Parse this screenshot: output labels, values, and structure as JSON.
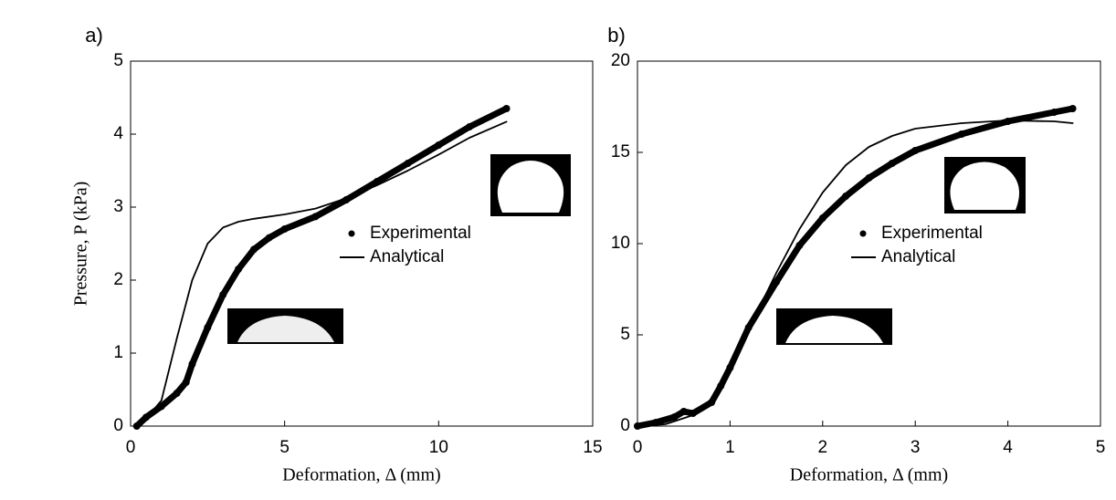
{
  "chart_data": [
    {
      "type": "line",
      "panel_label": "a)",
      "xlabel": "Deformation, Δ (mm)",
      "ylabel": "Pressure, P (kPa)",
      "xlim": [
        0,
        15
      ],
      "xticks": [
        0,
        5,
        10,
        15
      ],
      "ylim": [
        0,
        5
      ],
      "yticks": [
        0,
        1,
        2,
        3,
        4,
        5
      ],
      "series": [
        {
          "name": "Experimental",
          "color": "#000000",
          "style": "dots",
          "x": [
            0.2,
            0.5,
            1,
            1.5,
            1.8,
            2,
            2.5,
            3,
            3.5,
            4,
            4.5,
            5,
            6,
            7,
            8,
            9,
            10,
            11,
            12.2
          ],
          "values": [
            0,
            0.12,
            0.27,
            0.45,
            0.6,
            0.85,
            1.35,
            1.8,
            2.15,
            2.42,
            2.58,
            2.7,
            2.87,
            3.1,
            3.35,
            3.6,
            3.85,
            4.1,
            4.35
          ]
        },
        {
          "name": "Analytical",
          "color": "#000000",
          "style": "line",
          "x": [
            0.2,
            0.5,
            1,
            1.5,
            2,
            2.5,
            3,
            3.5,
            4,
            5,
            6,
            7,
            8,
            9,
            10,
            11,
            12.2
          ],
          "values": [
            0,
            0.1,
            0.35,
            1.2,
            2.0,
            2.5,
            2.72,
            2.8,
            2.84,
            2.9,
            2.98,
            3.12,
            3.3,
            3.5,
            3.72,
            3.95,
            4.17
          ]
        }
      ]
    },
    {
      "type": "line",
      "panel_label": "b)",
      "xlabel": "Deformation, Δ (mm)",
      "xlim": [
        0,
        5
      ],
      "xticks": [
        0,
        1,
        2,
        3,
        4,
        5
      ],
      "ylim": [
        0,
        20
      ],
      "yticks": [
        0,
        5,
        10,
        15,
        20
      ],
      "series": [
        {
          "name": "Experimental",
          "color": "#000000",
          "style": "dots",
          "x": [
            0,
            0.2,
            0.4,
            0.5,
            0.6,
            0.8,
            0.9,
            1,
            1.2,
            1.5,
            1.75,
            2,
            2.25,
            2.5,
            2.75,
            3,
            3.5,
            4,
            4.5,
            4.7
          ],
          "values": [
            0,
            0.2,
            0.5,
            0.8,
            0.7,
            1.3,
            2.2,
            3.2,
            5.4,
            7.9,
            9.9,
            11.4,
            12.6,
            13.6,
            14.4,
            15.1,
            16.0,
            16.7,
            17.2,
            17.4
          ]
        },
        {
          "name": "Analytical",
          "color": "#000000",
          "style": "line",
          "x": [
            0,
            0.3,
            0.6,
            0.8,
            1,
            1.25,
            1.5,
            1.75,
            2,
            2.25,
            2.5,
            2.75,
            3,
            3.5,
            4,
            4.5,
            4.7
          ],
          "values": [
            0,
            0.1,
            0.6,
            1.4,
            3.2,
            5.8,
            8.4,
            10.8,
            12.8,
            14.3,
            15.3,
            15.9,
            16.3,
            16.6,
            16.75,
            16.7,
            16.6
          ]
        }
      ]
    }
  ]
}
